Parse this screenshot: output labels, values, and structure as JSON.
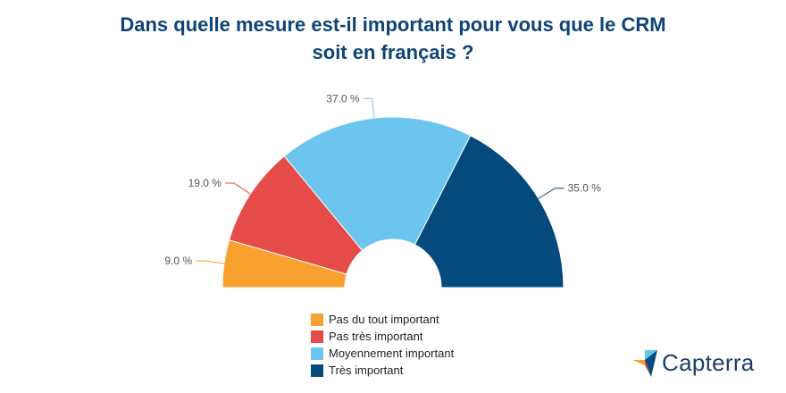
{
  "title_lines": [
    "Dans quelle mesure est-il important pour vous que le CRM",
    "soit en français ?"
  ],
  "chart_data": {
    "type": "pie",
    "variant": "half-donut",
    "title": "Dans quelle mesure est-il important pour vous que le CRM soit en français ?",
    "categories": [
      "Pas du tout important",
      "Pas très important",
      "Moyennement important",
      "Très important"
    ],
    "values": [
      9.0,
      19.0,
      37.0,
      35.0
    ],
    "labels": [
      "9.0 %",
      "19.0 %",
      "37.0 %",
      "35.0 %"
    ],
    "colors": [
      "#f9a12e",
      "#e54b48",
      "#6cc5ee",
      "#054a7d"
    ],
    "legend_position": "bottom"
  },
  "legend": [
    {
      "label": "Pas du tout important",
      "color": "#f9a12e"
    },
    {
      "label": "Pas très important",
      "color": "#e54b48"
    },
    {
      "label": "Moyennement important",
      "color": "#6cc5ee"
    },
    {
      "label": "Très important",
      "color": "#054a7d"
    }
  ],
  "brand": {
    "name": "Capterra",
    "color": "#1d3f66"
  }
}
